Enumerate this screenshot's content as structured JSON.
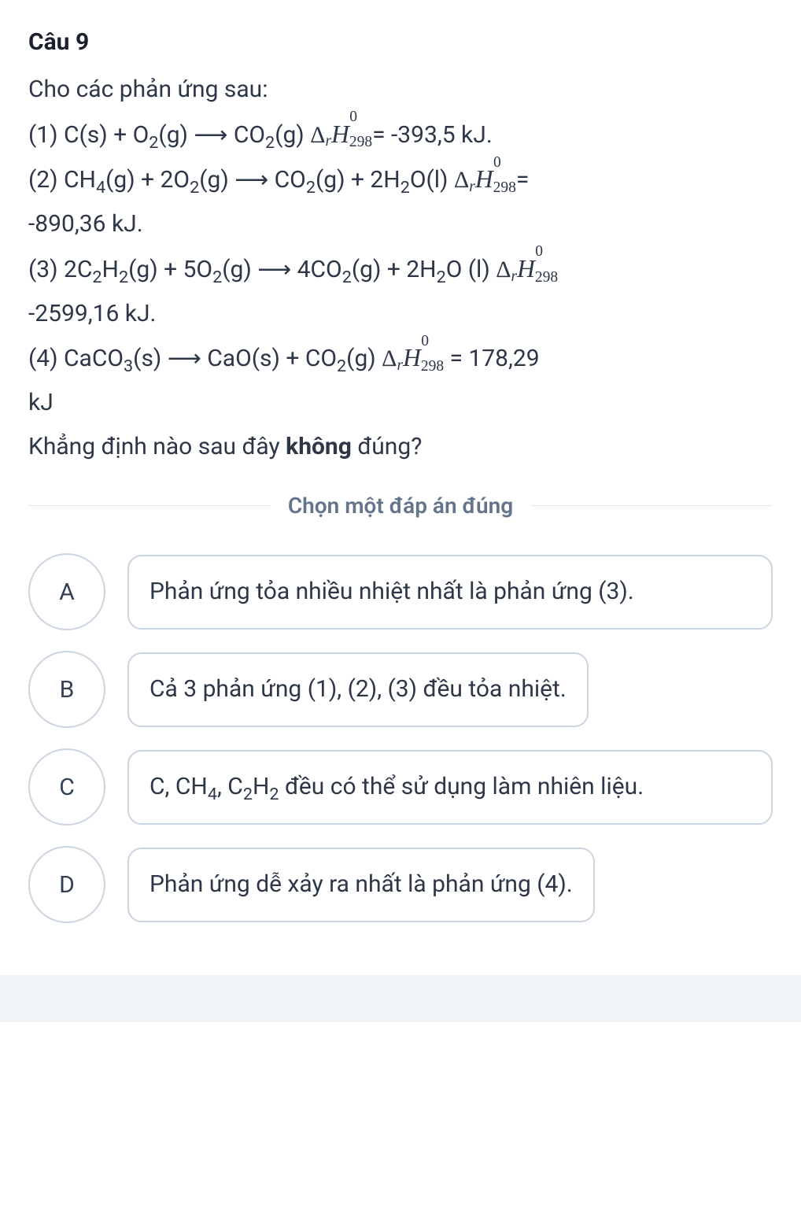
{
  "question": {
    "title": "Câu 9",
    "intro": "Cho các phản ứng sau:",
    "reactions": {
      "r1": {
        "prefix": "(1) C(s) + O",
        "sub1": "2",
        "mid1": "(g) ",
        "arrow": "⟶",
        "mid2": " CO",
        "sub2": "2",
        "mid3": "(g) ",
        "value": "= -393,5 kJ."
      },
      "r2": {
        "prefix": "(2) CH",
        "sub1": "4",
        "mid1": "(g) + 2O",
        "sub2": "2",
        "mid2": "(g) ",
        "arrow": "⟶",
        "mid3": " CO",
        "sub3": "2",
        "mid4": "(g) + 2H",
        "sub4": "2",
        "mid5": "O(l) ",
        "value_eq": "=",
        "value_line2": "-890,36 kJ."
      },
      "r3": {
        "prefix": "(3) 2C",
        "sub1": "2",
        "mid1": "H",
        "sub2": "2",
        "mid2": "(g) + 5O",
        "sub3": "2",
        "mid3": "(g) ",
        "arrow": "⟶",
        "mid4": " 4CO",
        "sub4": "2",
        "mid5": "(g) + 2H",
        "sub5": "2",
        "mid6": "O (l) ",
        "value_line2": "-2599,16 kJ."
      },
      "r4": {
        "prefix": "(4) CaCO",
        "sub1": "3",
        "mid1": "(s) ",
        "arrow": "⟶",
        "mid2": " CaO(s) + CO",
        "sub2": "2",
        "mid3": "(g)  ",
        "value": " = 178,29",
        "value_line2": "kJ"
      }
    },
    "prompt_pre": "Khẳng định nào sau đây ",
    "prompt_bold": "không",
    "prompt_post": " đúng?"
  },
  "divider": "Chọn một đáp án đúng",
  "options": {
    "a": {
      "letter": "A",
      "text_pre": "Phản ứng tỏa nhiều nhiệt nhất là phản ứng (3)."
    },
    "b": {
      "letter": "B",
      "text_pre": "Cả 3 phản ứng (1), (2), (3) đều tỏa nhiệt."
    },
    "c": {
      "letter": "C",
      "text_pre": "C, CH",
      "sub1": "4",
      "mid1": ", C",
      "sub2": "2",
      "mid2": "H",
      "sub3": "2",
      "text_post": " đều có thể sử dụng làm nhiên liệu."
    },
    "d": {
      "letter": "D",
      "text_pre": "Phản ứng dễ xảy ra nhất là phản ứng (4)."
    }
  },
  "deltaH": {
    "delta": "Δ",
    "r": "r",
    "H": "H",
    "sup": "0",
    "sub": "298"
  },
  "colors": {
    "text": "#2d3748",
    "title": "#1a202c",
    "border": "#cbd5e1",
    "divider_line": "#e2e8f0",
    "divider_text": "#64748b",
    "footer_bg": "#f1f5f9"
  }
}
